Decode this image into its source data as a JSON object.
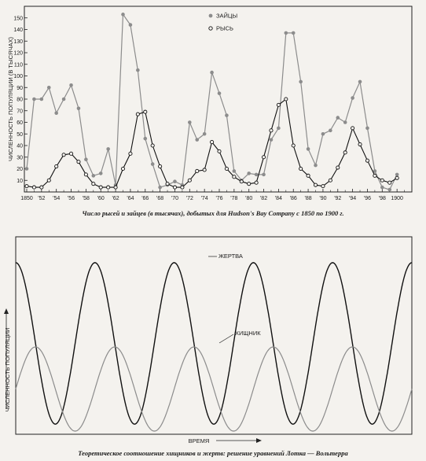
{
  "chart_data": [
    {
      "type": "line",
      "title": "",
      "xlabel": "",
      "ylabel": "ЧИСЛЕННОСТЬ ПОПУЛЯЦИИ (В ТЫСЯЧАХ)",
      "xlim": [
        1850,
        1902
      ],
      "ylim": [
        0,
        160
      ],
      "x_tick_labels": [
        "1850",
        "'52",
        "'54",
        "'56",
        "'58",
        "'60",
        "'62",
        "'64",
        "'66",
        "'68",
        "'70",
        "'72",
        "'74",
        "'76",
        "'78",
        "'80",
        "'82",
        "'84",
        "'86",
        "'88",
        "'90",
        "'92",
        "'94",
        "'96",
        "'98",
        "1900"
      ],
      "y_ticks": [
        10,
        20,
        30,
        40,
        50,
        60,
        70,
        80,
        90,
        100,
        110,
        120,
        130,
        140,
        150
      ],
      "grid": false,
      "legend_position": "top-center",
      "series": [
        {
          "name": "ЗАЙЦЫ",
          "color": "#8c8c8c",
          "marker": "filled-circle",
          "x": [
            1850,
            1851,
            1852,
            1853,
            1854,
            1855,
            1856,
            1857,
            1858,
            1859,
            1860,
            1861,
            1862,
            1863,
            1864,
            1865,
            1866,
            1867,
            1868,
            1869,
            1870,
            1871,
            1872,
            1873,
            1874,
            1875,
            1876,
            1877,
            1878,
            1879,
            1880,
            1881,
            1882,
            1883,
            1884,
            1885,
            1886,
            1887,
            1888,
            1889,
            1890,
            1891,
            1892,
            1893,
            1894,
            1895,
            1896,
            1897,
            1898,
            1899,
            1900
          ],
          "y": [
            20,
            80,
            80,
            90,
            68,
            80,
            92,
            72,
            28,
            14,
            16,
            37,
            6,
            153,
            144,
            105,
            46,
            24,
            4,
            6,
            9,
            6,
            60,
            45,
            50,
            103,
            85,
            66,
            18,
            10,
            16,
            15,
            15,
            45,
            55,
            137,
            137,
            95,
            37,
            23,
            50,
            53,
            64,
            60,
            81,
            95,
            55,
            18,
            4,
            2,
            15
          ]
        },
        {
          "name": "РЫСЬ",
          "color": "#111111",
          "marker": "open-circle",
          "x": [
            1850,
            1851,
            1852,
            1853,
            1854,
            1855,
            1856,
            1857,
            1858,
            1859,
            1860,
            1861,
            1862,
            1863,
            1864,
            1865,
            1866,
            1867,
            1868,
            1869,
            1870,
            1871,
            1872,
            1873,
            1874,
            1875,
            1876,
            1877,
            1878,
            1879,
            1880,
            1881,
            1882,
            1883,
            1884,
            1885,
            1886,
            1887,
            1888,
            1889,
            1890,
            1891,
            1892,
            1893,
            1894,
            1895,
            1896,
            1897,
            1898,
            1899,
            1900
          ],
          "y": [
            5,
            4,
            4,
            10,
            22,
            32,
            33,
            26,
            15,
            7,
            4,
            4,
            4,
            20,
            33,
            67,
            69,
            40,
            22,
            7,
            4,
            4,
            10,
            18,
            19,
            43,
            35,
            20,
            13,
            9,
            7,
            8,
            30,
            53,
            75,
            80,
            40,
            20,
            14,
            6,
            5,
            10,
            21,
            34,
            55,
            41,
            27,
            14,
            10,
            8,
            12
          ]
        }
      ]
    },
    {
      "type": "line",
      "title": "",
      "xlabel": "ВРЕМЯ",
      "ylabel": "ЧИСЛЕННОСТЬ ПОПУЛЯЦИИ",
      "grid": false,
      "x_range": [
        0,
        5
      ],
      "y_range": [
        0,
        1
      ],
      "series": [
        {
          "name": "ЖЕРТВА",
          "color": "#111111",
          "period": 1,
          "phase": 0.0,
          "min": 0.04,
          "max": 0.96
        },
        {
          "name": "ХИЩНИК",
          "color": "#8c8c8c",
          "period": 1,
          "phase": 0.25,
          "min": 0.0,
          "max": 0.48
        }
      ]
    }
  ],
  "captions": {
    "top": "Число рысей и зайцев (в тысячах), добытых для Hudson's Bay Company с 1850 по 1900 г.",
    "bottom": "Теоретическое соотношение хищников и жертв: решение уравнений Лотка — Вольтерра"
  }
}
